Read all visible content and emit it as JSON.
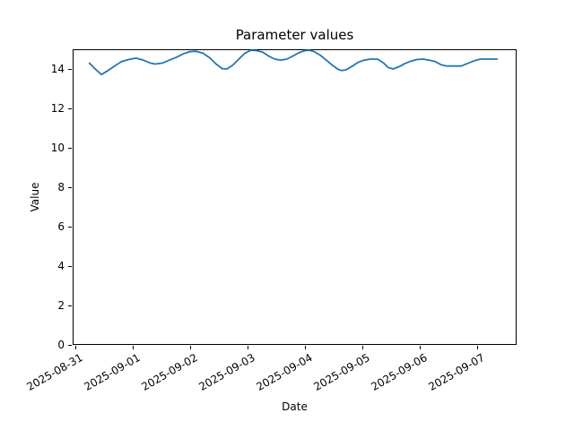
{
  "chart_data": {
    "type": "line",
    "title": "Parameter values",
    "xlabel": "Date",
    "ylabel": "Value",
    "grid": false,
    "legend_position": "none",
    "ylim": [
      0,
      15
    ],
    "y_ticks": [
      0,
      2,
      4,
      6,
      8,
      10,
      12,
      14
    ],
    "xlim": [
      "2025-08-30T22:30",
      "2025-09-07T16:08"
    ],
    "x_ticks": [
      "2025-08-31",
      "2025-09-01",
      "2025-09-02",
      "2025-09-03",
      "2025-09-04",
      "2025-09-05",
      "2025-09-06",
      "2025-09-07"
    ],
    "series": [
      {
        "color": "#1f77b4",
        "line_width": 1.8,
        "points": [
          [
            "2025-08-31T05:30",
            14.3
          ],
          [
            "2025-08-31T07:30",
            14.05
          ],
          [
            "2025-08-31T10:30",
            13.72
          ],
          [
            "2025-08-31T13:00",
            13.9
          ],
          [
            "2025-08-31T16:00",
            14.15
          ],
          [
            "2025-08-31T19:00",
            14.38
          ],
          [
            "2025-08-31T22:00",
            14.48
          ],
          [
            "2025-09-01T01:00",
            14.55
          ],
          [
            "2025-09-01T04:00",
            14.45
          ],
          [
            "2025-09-01T07:00",
            14.3
          ],
          [
            "2025-09-01T09:00",
            14.25
          ],
          [
            "2025-09-01T12:00",
            14.3
          ],
          [
            "2025-09-01T15:00",
            14.45
          ],
          [
            "2025-09-01T18:00",
            14.6
          ],
          [
            "2025-09-01T21:00",
            14.78
          ],
          [
            "2025-09-01T23:30",
            14.88
          ],
          [
            "2025-09-02T02:00",
            14.9
          ],
          [
            "2025-09-02T05:00",
            14.8
          ],
          [
            "2025-09-02T08:00",
            14.55
          ],
          [
            "2025-09-02T10:30",
            14.25
          ],
          [
            "2025-09-02T13:00",
            14.02
          ],
          [
            "2025-09-02T15:00",
            14.0
          ],
          [
            "2025-09-02T17:30",
            14.2
          ],
          [
            "2025-09-02T20:00",
            14.5
          ],
          [
            "2025-09-02T22:30",
            14.8
          ],
          [
            "2025-09-03T01:00",
            14.95
          ],
          [
            "2025-09-03T03:30",
            14.93
          ],
          [
            "2025-09-03T06:00",
            14.85
          ],
          [
            "2025-09-03T08:30",
            14.65
          ],
          [
            "2025-09-03T11:00",
            14.5
          ],
          [
            "2025-09-03T13:30",
            14.45
          ],
          [
            "2025-09-03T16:00",
            14.5
          ],
          [
            "2025-09-03T18:30",
            14.65
          ],
          [
            "2025-09-03T21:00",
            14.82
          ],
          [
            "2025-09-03T23:30",
            14.93
          ],
          [
            "2025-09-04T01:30",
            14.95
          ],
          [
            "2025-09-04T03:30",
            14.88
          ],
          [
            "2025-09-04T06:00",
            14.7
          ],
          [
            "2025-09-04T08:30",
            14.45
          ],
          [
            "2025-09-04T11:00",
            14.2
          ],
          [
            "2025-09-04T13:30",
            13.98
          ],
          [
            "2025-09-04T15:00",
            13.92
          ],
          [
            "2025-09-04T17:00",
            13.97
          ],
          [
            "2025-09-04T19:30",
            14.15
          ],
          [
            "2025-09-04T22:00",
            14.35
          ],
          [
            "2025-09-05T00:30",
            14.45
          ],
          [
            "2025-09-05T03:00",
            14.5
          ],
          [
            "2025-09-05T06:00",
            14.5
          ],
          [
            "2025-09-05T08:30",
            14.3
          ],
          [
            "2025-09-05T10:30",
            14.07
          ],
          [
            "2025-09-05T12:30",
            14.0
          ],
          [
            "2025-09-05T15:00",
            14.12
          ],
          [
            "2025-09-05T17:30",
            14.28
          ],
          [
            "2025-09-05T20:00",
            14.4
          ],
          [
            "2025-09-05T22:30",
            14.48
          ],
          [
            "2025-09-06T01:00",
            14.5
          ],
          [
            "2025-09-06T03:30",
            14.45
          ],
          [
            "2025-09-06T06:00",
            14.38
          ],
          [
            "2025-09-06T08:30",
            14.22
          ],
          [
            "2025-09-06T11:00",
            14.15
          ],
          [
            "2025-09-06T14:00",
            14.15
          ],
          [
            "2025-09-06T17:00",
            14.15
          ],
          [
            "2025-09-06T20:00",
            14.3
          ],
          [
            "2025-09-06T22:30",
            14.42
          ],
          [
            "2025-09-07T01:00",
            14.5
          ],
          [
            "2025-09-07T04:00",
            14.5
          ],
          [
            "2025-09-07T08:00",
            14.5
          ]
        ]
      }
    ]
  }
}
